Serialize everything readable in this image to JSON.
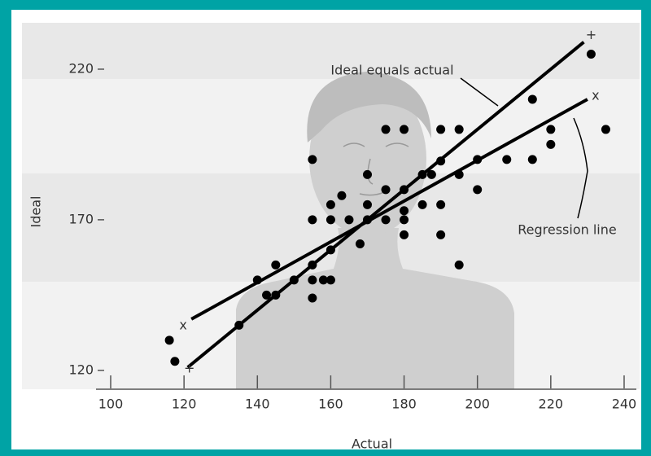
{
  "chart_data": {
    "type": "scatter",
    "x_label": "Actual",
    "y_label": "Ideal",
    "xlim": [
      98,
      244
    ],
    "ylim": [
      114,
      235.4
    ],
    "xticks": [
      100,
      120,
      140,
      160,
      180,
      200,
      220,
      240
    ],
    "yticks": [
      120,
      170,
      220
    ],
    "series": [
      {
        "color": "#000000",
        "x": [
          116,
          117.5,
          135,
          140,
          142.5,
          145,
          145,
          150,
          155,
          155,
          155,
          158,
          160,
          160,
          155,
          155,
          160,
          160,
          163,
          165,
          168,
          170,
          170,
          170,
          175,
          175,
          175,
          180,
          180,
          180,
          180,
          180,
          185,
          185,
          187.5,
          190,
          190,
          190,
          190,
          195,
          195,
          195,
          200,
          200,
          208,
          215,
          215,
          220,
          220,
          231,
          235
        ],
        "values": [
          130,
          123,
          135,
          150,
          145,
          155,
          145,
          150,
          155,
          150,
          144,
          150,
          150,
          160,
          190,
          170,
          175,
          170,
          178,
          170,
          162,
          185,
          175,
          170,
          200,
          180,
          170,
          200,
          180,
          173,
          170,
          165,
          185,
          175,
          185,
          200,
          189.5,
          175,
          165,
          200,
          185,
          155,
          180,
          190,
          190,
          190,
          210,
          200,
          195,
          225,
          200
        ]
      },
      {
        "type": "line",
        "name": "Ideal equals actual",
        "color": "#000000",
        "end_labels": [
          "+",
          "+"
        ],
        "x": [
          121,
          229
        ],
        "values": [
          121,
          229
        ]
      },
      {
        "type": "line",
        "name": "Regression line",
        "color": "#000000",
        "end_labels": [
          "x",
          "x"
        ],
        "x": [
          122,
          230
        ],
        "values": [
          137,
          210
        ]
      }
    ]
  }
}
